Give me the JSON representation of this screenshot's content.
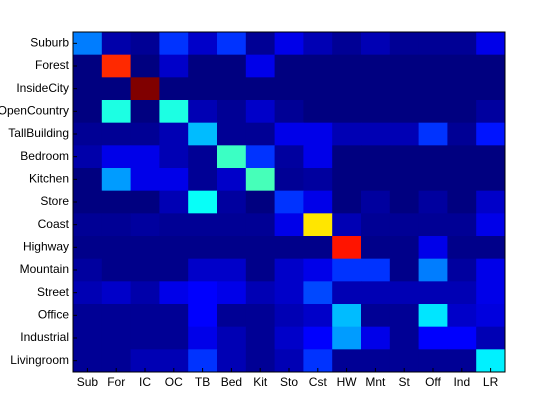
{
  "chart_data": {
    "type": "heatmap",
    "colormap": "jet",
    "x_categories": [
      "Sub",
      "For",
      "IC",
      "OC",
      "TB",
      "Bed",
      "Kit",
      "Sto",
      "Cst",
      "HW",
      "Mnt",
      "St",
      "Off",
      "Ind",
      "LR"
    ],
    "y_categories": [
      "Suburb",
      "Forest",
      "InsideCity",
      "OpenCountry",
      "TallBuilding",
      "Bedroom",
      "Kitchen",
      "Store",
      "Coast",
      "Highway",
      "Mountain",
      "Street",
      "Office",
      "Industrial",
      "Livingroom"
    ],
    "values": [
      [
        0.27,
        0.07,
        0.05,
        0.2,
        0.1,
        0.2,
        0.05,
        0.13,
        0.08,
        0.05,
        0.08,
        0.05,
        0.05,
        0.05,
        0.13
      ],
      [
        0.03,
        0.84,
        0.03,
        0.1,
        0.03,
        0.03,
        0.13,
        0.03,
        0.03,
        0.03,
        0.03,
        0.03,
        0.03,
        0.03,
        0.03
      ],
      [
        0.03,
        0.03,
        1.0,
        0.03,
        0.03,
        0.03,
        0.03,
        0.03,
        0.03,
        0.03,
        0.03,
        0.03,
        0.03,
        0.03,
        0.03
      ],
      [
        0.03,
        0.42,
        0.03,
        0.42,
        0.08,
        0.05,
        0.1,
        0.05,
        0.03,
        0.03,
        0.03,
        0.03,
        0.03,
        0.03,
        0.06
      ],
      [
        0.05,
        0.05,
        0.05,
        0.08,
        0.33,
        0.05,
        0.05,
        0.13,
        0.13,
        0.08,
        0.08,
        0.08,
        0.2,
        0.05,
        0.17
      ],
      [
        0.07,
        0.13,
        0.13,
        0.08,
        0.05,
        0.45,
        0.2,
        0.06,
        0.13,
        0.03,
        0.03,
        0.03,
        0.03,
        0.03,
        0.03
      ],
      [
        0.03,
        0.3,
        0.13,
        0.13,
        0.05,
        0.1,
        0.46,
        0.05,
        0.06,
        0.03,
        0.03,
        0.03,
        0.03,
        0.03,
        0.03
      ],
      [
        0.03,
        0.03,
        0.03,
        0.08,
        0.4,
        0.06,
        0.03,
        0.2,
        0.13,
        0.03,
        0.06,
        0.03,
        0.06,
        0.03,
        0.1
      ],
      [
        0.05,
        0.05,
        0.06,
        0.05,
        0.05,
        0.05,
        0.05,
        0.13,
        0.66,
        0.08,
        0.05,
        0.05,
        0.05,
        0.05,
        0.13
      ],
      [
        0.04,
        0.04,
        0.04,
        0.04,
        0.04,
        0.04,
        0.04,
        0.04,
        0.04,
        0.86,
        0.04,
        0.04,
        0.13,
        0.04,
        0.04
      ],
      [
        0.06,
        0.04,
        0.04,
        0.04,
        0.1,
        0.1,
        0.04,
        0.1,
        0.13,
        0.2,
        0.2,
        0.04,
        0.27,
        0.06,
        0.13
      ],
      [
        0.08,
        0.1,
        0.07,
        0.13,
        0.15,
        0.13,
        0.08,
        0.1,
        0.22,
        0.08,
        0.08,
        0.08,
        0.08,
        0.08,
        0.13
      ],
      [
        0.05,
        0.05,
        0.05,
        0.05,
        0.15,
        0.05,
        0.05,
        0.08,
        0.1,
        0.33,
        0.05,
        0.05,
        0.37,
        0.1,
        0.12
      ],
      [
        0.05,
        0.05,
        0.05,
        0.05,
        0.13,
        0.08,
        0.05,
        0.1,
        0.15,
        0.3,
        0.13,
        0.05,
        0.15,
        0.15,
        0.08
      ],
      [
        0.05,
        0.05,
        0.08,
        0.08,
        0.2,
        0.08,
        0.05,
        0.08,
        0.2,
        0.05,
        0.05,
        0.05,
        0.05,
        0.05,
        0.38
      ]
    ]
  }
}
